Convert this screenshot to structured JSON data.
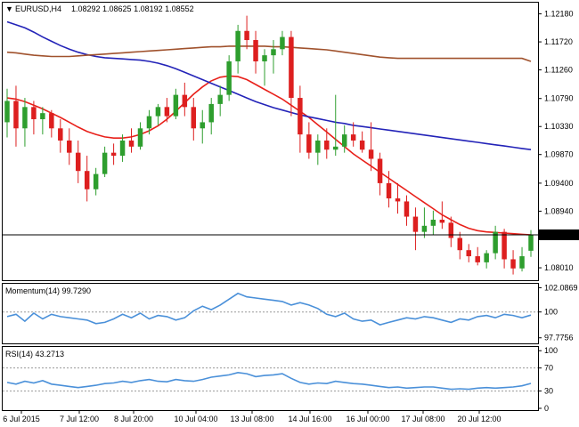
{
  "header": {
    "triangle": "▼",
    "symbol": "EURUSD,H4",
    "ohlc": "1.08292 1.08625 1.08192 1.08552"
  },
  "colors": {
    "bull": "#2e9e2e",
    "bear": "#dd1f1f",
    "sma_fast": "#e8201a",
    "sma_mid": "#2323b8",
    "sma_slow": "#a0522d",
    "indicator": "#4a90d9",
    "grid_dash": "#999999",
    "frame": "#000000"
  },
  "chart_data": [
    {
      "type": "candlestick",
      "title": "EURUSD,H4",
      "ylim": [
        1.0785,
        1.1232
      ],
      "y_ticks": [
        "1.12180",
        "1.11720",
        "1.11260",
        "1.10790",
        "1.10330",
        "1.09870",
        "1.09400",
        "1.08940",
        "1.08010"
      ],
      "last_price": "1.08552",
      "candles": [
        [
          1.104,
          1.1095,
          1.1015,
          1.1075
        ],
        [
          1.1075,
          1.11,
          1.1,
          1.103
        ],
        [
          1.103,
          1.108,
          1.1,
          1.1065
        ],
        [
          1.1065,
          1.1075,
          1.102,
          1.1045
        ],
        [
          1.1045,
          1.1065,
          1.102,
          1.1055
        ],
        [
          1.1055,
          1.106,
          1.1015,
          1.103
        ],
        [
          1.103,
          1.1045,
          1.099,
          1.101
        ],
        [
          1.101,
          1.103,
          1.097,
          1.099
        ],
        [
          1.099,
          1.101,
          1.094,
          1.096
        ],
        [
          1.096,
          1.0985,
          1.091,
          1.093
        ],
        [
          1.093,
          1.0965,
          1.092,
          1.0955
        ],
        [
          1.0955,
          1.1,
          1.095,
          1.099
        ],
        [
          1.099,
          1.1005,
          1.097,
          1.0985
        ],
        [
          1.0985,
          1.102,
          1.0975,
          1.101
        ],
        [
          1.101,
          1.103,
          1.099,
          1.1
        ],
        [
          1.1,
          1.104,
          1.0995,
          1.103
        ],
        [
          1.103,
          1.106,
          1.102,
          1.105
        ],
        [
          1.105,
          1.107,
          1.1035,
          1.1065
        ],
        [
          1.1065,
          1.108,
          1.104,
          1.105
        ],
        [
          1.105,
          1.1095,
          1.1045,
          1.1085
        ],
        [
          1.1085,
          1.1105,
          1.105,
          1.1065
        ],
        [
          1.1065,
          1.108,
          1.101,
          1.103
        ],
        [
          1.103,
          1.106,
          1.1005,
          1.104
        ],
        [
          1.104,
          1.108,
          1.102,
          1.107
        ],
        [
          1.107,
          1.11,
          1.105,
          1.1085
        ],
        [
          1.1085,
          1.115,
          1.1075,
          1.114
        ],
        [
          1.114,
          1.12,
          1.112,
          1.119
        ],
        [
          1.119,
          1.1215,
          1.116,
          1.1175
        ],
        [
          1.1175,
          1.119,
          1.112,
          1.114
        ],
        [
          1.114,
          1.116,
          1.11,
          1.115
        ],
        [
          1.115,
          1.1175,
          1.112,
          1.116
        ],
        [
          1.116,
          1.119,
          1.115,
          1.118
        ],
        [
          1.118,
          1.119,
          1.105,
          1.108
        ],
        [
          1.108,
          1.11,
          1.099,
          1.102
        ],
        [
          1.102,
          1.104,
          1.098,
          1.099
        ],
        [
          1.099,
          1.102,
          1.097,
          1.101
        ],
        [
          1.101,
          1.103,
          1.098,
          1.0995
        ],
        [
          1.0995,
          1.1085,
          1.0985,
          1.1
        ],
        [
          1.1,
          1.1035,
          1.099,
          1.102
        ],
        [
          1.102,
          1.104,
          1.1,
          1.101
        ],
        [
          1.101,
          1.1025,
          1.099,
          1.0995
        ],
        [
          1.0995,
          1.104,
          1.096,
          1.098
        ],
        [
          1.098,
          1.099,
          1.092,
          1.094
        ],
        [
          1.094,
          1.096,
          1.09,
          1.0915
        ],
        [
          1.0915,
          1.094,
          1.089,
          1.091
        ],
        [
          1.091,
          1.092,
          1.087,
          1.0885
        ],
        [
          1.0885,
          1.09,
          1.083,
          1.086
        ],
        [
          1.086,
          1.09,
          1.085,
          1.087
        ],
        [
          1.087,
          1.0895,
          1.0855,
          1.088
        ],
        [
          1.088,
          1.091,
          1.0865,
          1.0875
        ],
        [
          1.0875,
          1.0885,
          1.0835,
          1.085
        ],
        [
          1.085,
          1.086,
          1.0815,
          1.083
        ],
        [
          1.083,
          1.084,
          1.081,
          1.082
        ],
        [
          1.082,
          1.0835,
          1.0805,
          1.081
        ],
        [
          1.081,
          1.083,
          1.08,
          1.0825
        ],
        [
          1.0825,
          1.087,
          1.0815,
          1.086
        ],
        [
          1.086,
          1.0865,
          1.08,
          1.0815
        ],
        [
          1.0815,
          1.083,
          1.079,
          1.08
        ],
        [
          1.08,
          1.0835,
          1.0795,
          1.082
        ],
        [
          1.0829,
          1.0863,
          1.0819,
          1.0855
        ]
      ],
      "series": [
        {
          "values": [
            1.108,
            1.1078,
            1.1074,
            1.1068,
            1.1062,
            1.1055,
            1.1048,
            1.104,
            1.1032,
            1.1025,
            1.102,
            1.1016,
            1.1014,
            1.1014,
            1.1016,
            1.102,
            1.1026,
            1.1034,
            1.1045,
            1.1058,
            1.1072,
            1.1086,
            1.1098,
            1.1108,
            1.1114,
            1.1116,
            1.1115,
            1.111,
            1.1102,
            1.1094,
            1.1086,
            1.1078,
            1.1068,
            1.1058,
            1.1048,
            1.1036,
            1.1024,
            1.1012,
            1.1,
            1.0988,
            1.0978,
            1.0968,
            1.0958,
            1.0948,
            1.0938,
            1.0928,
            1.0918,
            1.0908,
            1.0898,
            1.0888,
            1.088,
            1.0872,
            1.0866,
            1.0862,
            1.086,
            1.0859,
            1.0858,
            1.0857,
            1.0856,
            1.0855
          ]
        },
        {
          "values": [
            1.1205,
            1.12,
            1.1195,
            1.1188,
            1.118,
            1.1173,
            1.1166,
            1.116,
            1.1155,
            1.1151,
            1.1148,
            1.1146,
            1.1145,
            1.1144,
            1.1143,
            1.1142,
            1.114,
            1.1137,
            1.1133,
            1.1128,
            1.1122,
            1.1116,
            1.111,
            1.1104,
            1.1098,
            1.1092,
            1.1086,
            1.108,
            1.1074,
            1.1069,
            1.1064,
            1.106,
            1.1056,
            1.1052,
            1.1049,
            1.1046,
            1.1043,
            1.104,
            1.1038,
            1.1035,
            1.1033,
            1.1031,
            1.1029,
            1.1027,
            1.1025,
            1.1023,
            1.1021,
            1.1019,
            1.1017,
            1.1015,
            1.1013,
            1.1011,
            1.1009,
            1.1007,
            1.1005,
            1.1003,
            1.1001,
            1.0999,
            1.0997,
            1.0995
          ]
        },
        {
          "values": [
            1.1155,
            1.1154,
            1.1152,
            1.115,
            1.1149,
            1.1148,
            1.1148,
            1.1148,
            1.1149,
            1.115,
            1.1151,
            1.1152,
            1.1153,
            1.1154,
            1.1155,
            1.1156,
            1.1157,
            1.1158,
            1.1159,
            1.116,
            1.1161,
            1.1162,
            1.1163,
            1.1164,
            1.1164,
            1.1165,
            1.1165,
            1.1165,
            1.1165,
            1.1165,
            1.1164,
            1.1164,
            1.1163,
            1.1162,
            1.1161,
            1.116,
            1.1159,
            1.1157,
            1.1155,
            1.1153,
            1.1151,
            1.1149,
            1.1147,
            1.1146,
            1.1145,
            1.1145,
            1.1145,
            1.1145,
            1.1145,
            1.1145,
            1.1145,
            1.1145,
            1.1145,
            1.1145,
            1.1145,
            1.1145,
            1.1145,
            1.1145,
            1.1145,
            1.114
          ]
        }
      ]
    },
    {
      "type": "line",
      "title": "Momentum(14) 99.7290",
      "ylim": [
        97.45,
        102.35
      ],
      "y_ticks": [
        "102.0869",
        "100",
        "97.7756"
      ],
      "ref": 100,
      "values": [
        99.6,
        99.8,
        99.2,
        99.9,
        99.4,
        99.8,
        99.6,
        99.5,
        99.4,
        99.3,
        99.0,
        99.1,
        99.4,
        99.8,
        99.5,
        99.9,
        99.4,
        99.7,
        99.6,
        99.3,
        99.5,
        100.1,
        100.5,
        100.2,
        100.6,
        101.1,
        101.6,
        101.3,
        101.2,
        101.1,
        101.0,
        100.9,
        100.6,
        100.8,
        100.6,
        100.3,
        99.8,
        99.6,
        99.9,
        99.4,
        99.2,
        99.3,
        98.9,
        99.1,
        99.3,
        99.5,
        99.4,
        99.6,
        99.5,
        99.3,
        99.1,
        99.4,
        99.3,
        99.6,
        99.7,
        99.5,
        99.8,
        99.7,
        99.5,
        99.729
      ]
    },
    {
      "type": "line",
      "title": "RSI(14) 43.2713",
      "ylim": [
        0,
        105
      ],
      "y_ticks": [
        "100",
        "70",
        "30",
        "0"
      ],
      "ref": [
        70,
        30
      ],
      "values": [
        45,
        42,
        47,
        44,
        48,
        42,
        40,
        38,
        36,
        38,
        40,
        43,
        44,
        47,
        45,
        48,
        50,
        47,
        46,
        50,
        48,
        47,
        50,
        54,
        56,
        58,
        62,
        60,
        55,
        57,
        58,
        60,
        52,
        45,
        42,
        44,
        43,
        47,
        45,
        43,
        42,
        40,
        38,
        36,
        37,
        35,
        36,
        37,
        37,
        35,
        33,
        34,
        33,
        35,
        36,
        35,
        36,
        37,
        39,
        43.2713
      ]
    }
  ],
  "x_labels": [
    "6 Jul 2015",
    "7 Jul 12:00",
    "8 Jul 20:00",
    "10 Jul 04:00",
    "13 Jul 08:00",
    "14 Jul 16:00",
    "16 Jul 00:00",
    "17 Jul 08:00",
    "20 Jul 12:00"
  ]
}
